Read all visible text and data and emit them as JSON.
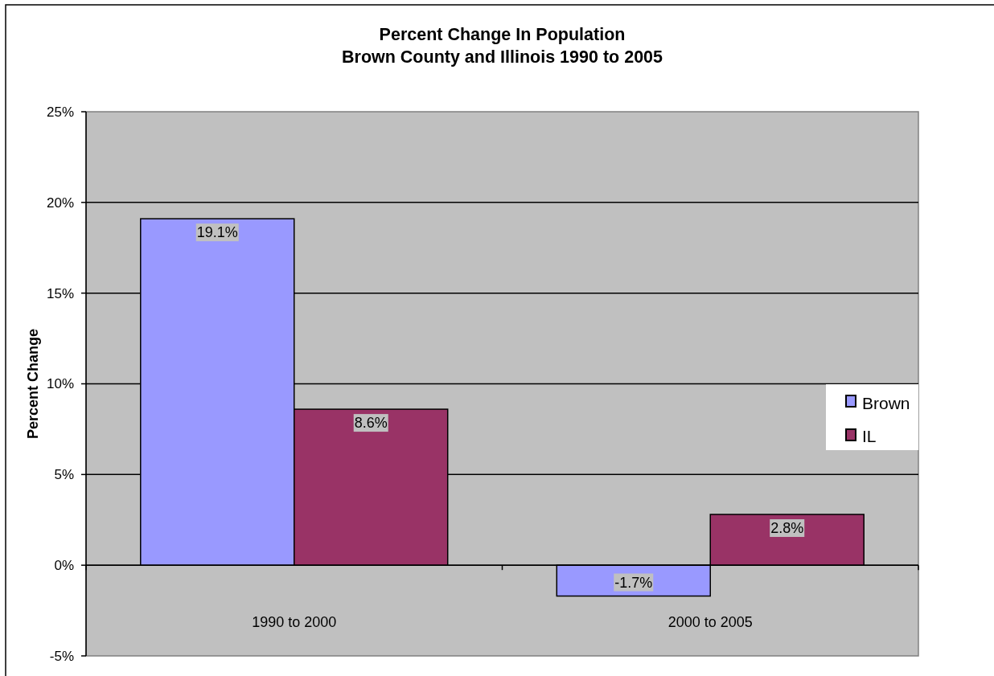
{
  "chart_data": {
    "type": "bar",
    "title": "Percent Change In Population\nBrown County and Illinois 1990 to 2005",
    "ylabel": "Percent Change",
    "categories": [
      "1990 to 2000",
      "2000 to 2005"
    ],
    "series": [
      {
        "name": "Brown",
        "color": "#9999ff",
        "values": [
          19.1,
          -1.7
        ],
        "value_labels": [
          "19.1%",
          "-1.7%"
        ]
      },
      {
        "name": "IL",
        "color": "#993366",
        "values": [
          8.6,
          2.8
        ],
        "value_labels": [
          "8.6%",
          "2.8%"
        ]
      }
    ],
    "ylim": [
      -5,
      25
    ],
    "yticks": [
      {
        "value": -5,
        "label": "-5%"
      },
      {
        "value": 0,
        "label": "0%"
      },
      {
        "value": 5,
        "label": "5%"
      },
      {
        "value": 10,
        "label": "10%"
      },
      {
        "value": 15,
        "label": "15%"
      },
      {
        "value": 20,
        "label": "20%"
      },
      {
        "value": 25,
        "label": "25%"
      }
    ],
    "grid": "y",
    "legend": "right"
  }
}
